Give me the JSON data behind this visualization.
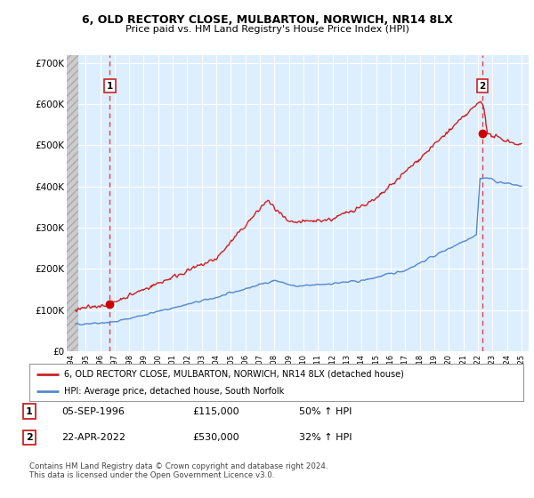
{
  "title": "6, OLD RECTORY CLOSE, MULBARTON, NORWICH, NR14 8LX",
  "subtitle": "Price paid vs. HM Land Registry's House Price Index (HPI)",
  "x_start": 1993.7,
  "x_end": 2025.5,
  "y_min": 0,
  "y_max": 720000,
  "yticks": [
    0,
    100000,
    200000,
    300000,
    400000,
    500000,
    600000,
    700000
  ],
  "ytick_labels": [
    "£0",
    "£100K",
    "£200K",
    "£300K",
    "£400K",
    "£500K",
    "£600K",
    "£700K"
  ],
  "xticks": [
    1994,
    1995,
    1996,
    1997,
    1998,
    1999,
    2000,
    2001,
    2002,
    2003,
    2004,
    2005,
    2006,
    2007,
    2008,
    2009,
    2010,
    2011,
    2012,
    2013,
    2014,
    2015,
    2016,
    2017,
    2018,
    2019,
    2020,
    2021,
    2022,
    2023,
    2024,
    2025
  ],
  "xtick_labels": [
    "1994",
    "1995",
    "1996",
    "1997",
    "1998",
    "1999",
    "2000",
    "2001",
    "2002",
    "2003",
    "2004",
    "2005",
    "2006",
    "2007",
    "2008",
    "2009",
    "2010",
    "2011",
    "2012",
    "2013",
    "2014",
    "2015",
    "2016",
    "2017",
    "2018",
    "2019",
    "2020",
    "2021",
    "2022",
    "2023",
    "2024",
    "2025"
  ],
  "sale1_x": 1996.67,
  "sale1_y": 115000,
  "sale1_label": "1",
  "sale2_x": 2022.3,
  "sale2_y": 530000,
  "sale2_label": "2",
  "legend_line1": "6, OLD RECTORY CLOSE, MULBARTON, NORWICH, NR14 8LX (detached house)",
  "legend_line2": "HPI: Average price, detached house, South Norfolk",
  "table_row1": [
    "1",
    "05-SEP-1996",
    "£115,000",
    "50% ↑ HPI"
  ],
  "table_row2": [
    "2",
    "22-APR-2022",
    "£530,000",
    "32% ↑ HPI"
  ],
  "footnote": "Contains HM Land Registry data © Crown copyright and database right 2024.\nThis data is licensed under the Open Government Licence v3.0.",
  "price_line_color": "#cc2222",
  "hpi_line_color": "#5588cc",
  "plot_bg_color": "#ddeeff",
  "hatch_bg_color": "#cccccc",
  "grid_color": "#ffffff",
  "vline_color": "#dd4444",
  "hatch_x_end": 1994.5,
  "sale_dot_color": "#cc0000",
  "box_edge_color": "#cc2222"
}
